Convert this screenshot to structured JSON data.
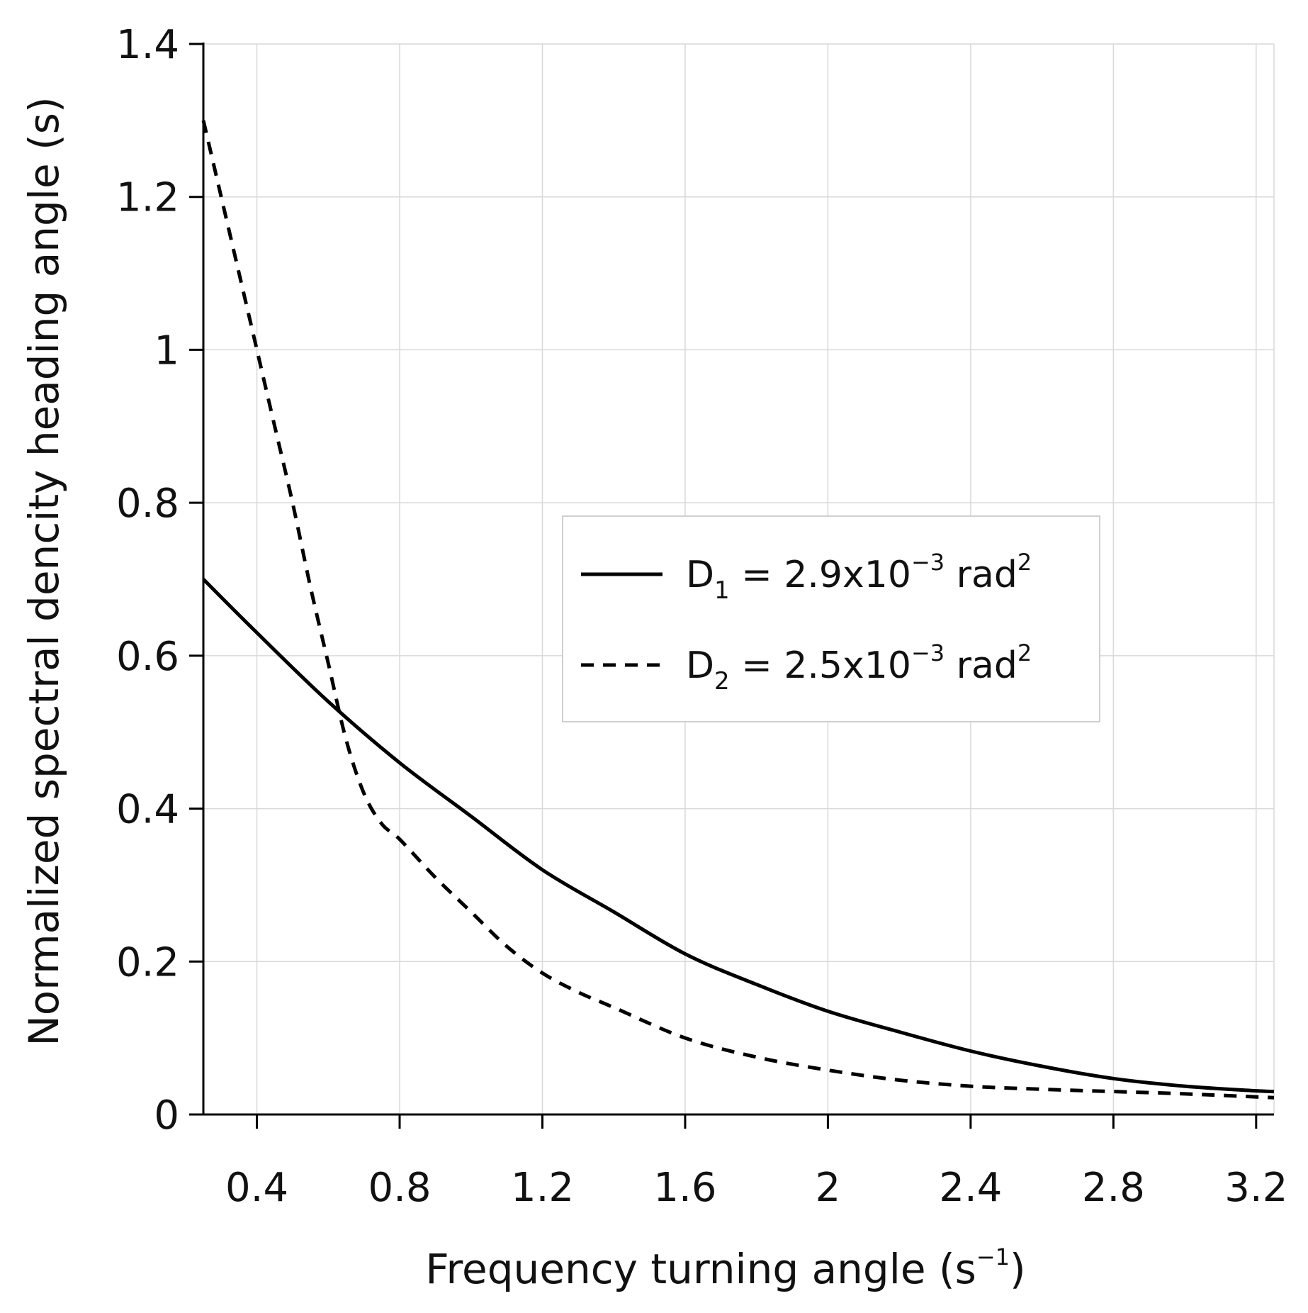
{
  "chart_data": {
    "type": "line",
    "title": "",
    "xlabel": {
      "main": "Frequency turning angle (s",
      "sup": "−1",
      "close": ")"
    },
    "ylabel": "Normalized spectral dencity heading angle (s)",
    "xlim": [
      0.25,
      3.25
    ],
    "ylim": [
      0,
      1.4
    ],
    "x_ticks": [
      0.4,
      0.8,
      1.2,
      1.6,
      2.0,
      2.4,
      2.8,
      3.2
    ],
    "x_tick_labels": [
      "0.4",
      "0.8",
      "1.2",
      "1.6",
      "2",
      "2.4",
      "2.8",
      "3.2"
    ],
    "y_ticks": [
      0,
      0.2,
      0.4,
      0.6,
      0.8,
      1.0,
      1.2,
      1.4
    ],
    "y_tick_labels": [
      "0",
      "0.2",
      "0.4",
      "0.6",
      "0.8",
      "1",
      "1.2",
      "1.4"
    ],
    "grid": true,
    "legend_position": "center-right",
    "series": [
      {
        "name": "D1",
        "legend": {
          "base": "D",
          "sub": "1",
          "text": " = 2.9x10",
          "sup": "−3",
          "unit": " rad",
          "unit_sup": "2"
        },
        "style": "solid",
        "x": [
          0.25,
          0.4,
          0.6,
          0.8,
          1.0,
          1.2,
          1.4,
          1.6,
          1.8,
          2.0,
          2.2,
          2.4,
          2.6,
          2.8,
          3.0,
          3.2,
          3.25
        ],
        "y": [
          0.7,
          0.63,
          0.54,
          0.46,
          0.39,
          0.32,
          0.265,
          0.21,
          0.17,
          0.135,
          0.108,
          0.083,
          0.063,
          0.047,
          0.037,
          0.031,
          0.03
        ]
      },
      {
        "name": "D2",
        "legend": {
          "base": "D",
          "sub": "2",
          "text": " = 2.5x10",
          "sup": "−3",
          "unit": " rad",
          "unit_sup": "2"
        },
        "style": "dashed",
        "x": [
          0.25,
          0.3,
          0.35,
          0.4,
          0.45,
          0.5,
          0.55,
          0.6,
          0.65,
          0.7,
          0.75,
          0.8,
          0.9,
          1.0,
          1.1,
          1.2,
          1.3,
          1.4,
          1.6,
          1.8,
          2.0,
          2.2,
          2.4,
          2.6,
          2.8,
          3.0,
          3.25
        ],
        "y": [
          1.3,
          1.2,
          1.1,
          1.0,
          0.9,
          0.8,
          0.69,
          0.59,
          0.49,
          0.42,
          0.38,
          0.36,
          0.31,
          0.265,
          0.22,
          0.185,
          0.16,
          0.14,
          0.1,
          0.075,
          0.058,
          0.045,
          0.037,
          0.033,
          0.03,
          0.027,
          0.022
        ]
      }
    ]
  }
}
